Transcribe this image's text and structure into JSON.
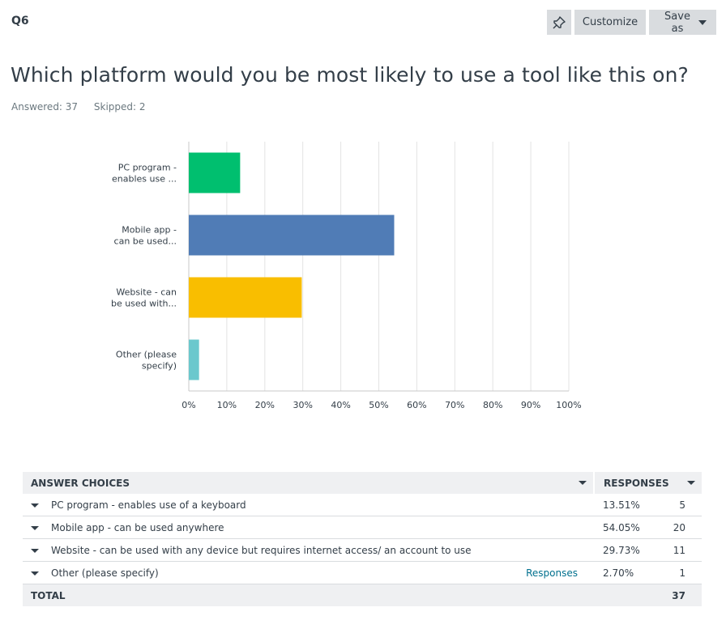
{
  "question": {
    "number": "Q6",
    "title": "Which platform would you be most likely to use a tool like this on?",
    "answered": "Answered: 37",
    "skipped": "Skipped: 2"
  },
  "toolbar": {
    "customize_label": "Customize",
    "save_label": "Save as"
  },
  "colors": {
    "green": "#00bf6f",
    "blue": "#507cb6",
    "yellow": "#f9be00",
    "teal": "#6bc8cd"
  },
  "chart_data": {
    "type": "bar",
    "orientation": "horizontal",
    "categories": [
      "PC program - enables use ...",
      "Mobile app - can be used...",
      "Website - can be used with...",
      "Other (please specify)"
    ],
    "category_lines": [
      [
        "PC program -",
        "enables use ..."
      ],
      [
        "Mobile app -",
        "can be used..."
      ],
      [
        "Website - can",
        "be used with..."
      ],
      [
        "Other (please",
        "specify)"
      ]
    ],
    "values": [
      13.51,
      54.05,
      29.73,
      2.7
    ],
    "colors": [
      "#00bf6f",
      "#507cb6",
      "#f9be00",
      "#6bc8cd"
    ],
    "xlim": [
      0,
      100
    ],
    "ticks": [
      "0%",
      "10%",
      "20%",
      "30%",
      "40%",
      "50%",
      "60%",
      "70%",
      "80%",
      "90%",
      "100%"
    ],
    "grid": true,
    "title": "",
    "xlabel": "",
    "ylabel": ""
  },
  "table": {
    "header_choices": "ANSWER CHOICES",
    "header_responses": "RESPONSES",
    "rows": [
      {
        "label": "PC program - enables use of a keyboard",
        "link": "",
        "pct": "13.51%",
        "count": "5"
      },
      {
        "label": "Mobile app - can be used anywhere",
        "link": "",
        "pct": "54.05%",
        "count": "20"
      },
      {
        "label": "Website - can be used with any device but requires internet access/ an account to use",
        "link": "",
        "pct": "29.73%",
        "count": "11"
      },
      {
        "label": "Other (please specify)",
        "link": "Responses",
        "pct": "2.70%",
        "count": "1"
      }
    ],
    "total_label": "TOTAL",
    "total_count": "37"
  }
}
